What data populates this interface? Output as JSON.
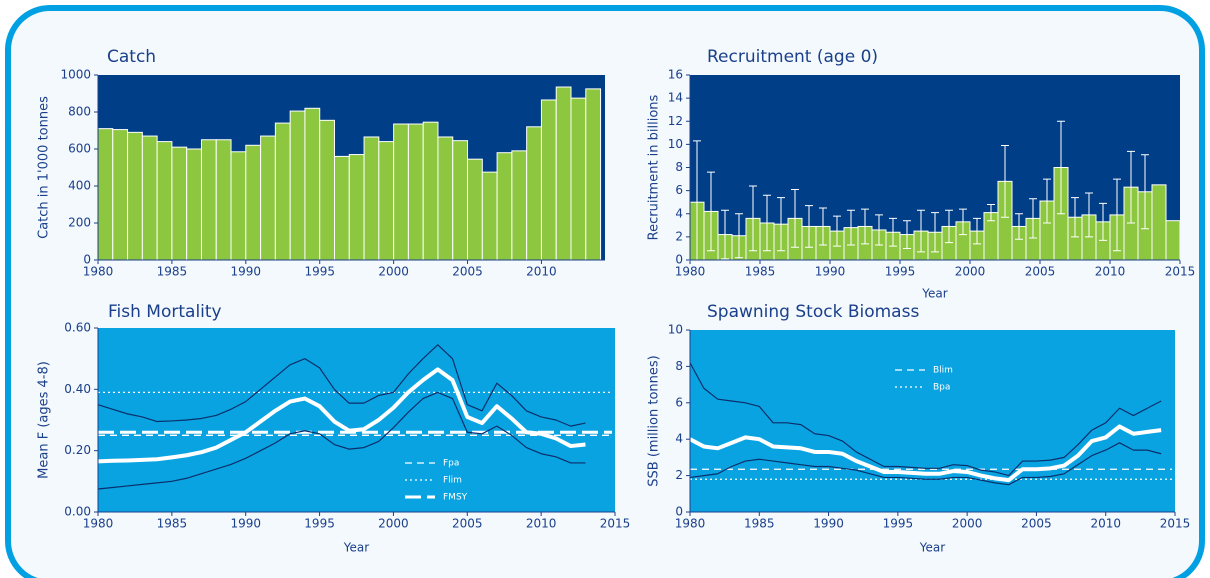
{
  "chart_data": [
    {
      "type": "bar",
      "title": "Catch",
      "ylabel": "Catch in 1'000 tonnes",
      "x": [
        1980,
        1981,
        1982,
        1983,
        1984,
        1985,
        1986,
        1987,
        1988,
        1989,
        1990,
        1991,
        1992,
        1993,
        1994,
        1995,
        1996,
        1997,
        1998,
        1999,
        2000,
        2001,
        2002,
        2003,
        2004,
        2005,
        2006,
        2007,
        2008,
        2009,
        2010,
        2011,
        2012,
        2013
      ],
      "values": [
        710,
        705,
        690,
        670,
        640,
        610,
        600,
        650,
        650,
        585,
        620,
        670,
        740,
        805,
        820,
        755,
        560,
        570,
        665,
        640,
        735,
        735,
        745,
        665,
        645,
        545,
        475,
        580,
        590,
        720,
        865,
        935,
        875,
        925
      ],
      "color": "#8dc63f",
      "xlim": [
        1980,
        2014.3
      ],
      "xticks": [
        1980,
        1985,
        1990,
        1995,
        2000,
        2005,
        2010
      ],
      "ylim": [
        0,
        1000
      ],
      "yticks": [
        0,
        200,
        400,
        600,
        800,
        1000
      ]
    },
    {
      "type": "bar",
      "title": "Recruitment (age 0)",
      "ylabel": "Recruitment in billions",
      "xlabel": "Year",
      "x": [
        1980,
        1981,
        1982,
        1983,
        1984,
        1985,
        1986,
        1987,
        1988,
        1989,
        1990,
        1991,
        1992,
        1993,
        1994,
        1995,
        1996,
        1997,
        1998,
        1999,
        2000,
        2001,
        2002,
        2003,
        2004,
        2005,
        2006,
        2007,
        2008,
        2009,
        2010,
        2011,
        2012,
        2013,
        2014
      ],
      "values": [
        5.0,
        4.2,
        2.2,
        2.1,
        3.6,
        3.2,
        3.1,
        3.6,
        2.9,
        2.9,
        2.5,
        2.8,
        2.9,
        2.6,
        2.4,
        2.2,
        2.5,
        2.4,
        2.9,
        3.3,
        2.5,
        4.1,
        6.8,
        2.9,
        3.6,
        5.1,
        8.0,
        3.7,
        3.9,
        3.3,
        3.9,
        6.3,
        5.9,
        6.5,
        3.4
      ],
      "errors": [
        5.3,
        3.4,
        2.1,
        1.9,
        2.8,
        2.4,
        2.3,
        2.5,
        1.8,
        1.6,
        1.3,
        1.5,
        1.5,
        1.3,
        1.2,
        1.2,
        1.8,
        1.7,
        1.4,
        1.1,
        1.1,
        0.7,
        3.1,
        1.1,
        1.7,
        1.9,
        4.0,
        1.7,
        1.9,
        1.6,
        3.1,
        3.1,
        3.2,
        null,
        null
      ],
      "color": "#8dc63f",
      "xlim": [
        1980,
        2015
      ],
      "xticks": [
        1980,
        1985,
        1990,
        1995,
        2000,
        2005,
        2010,
        2015
      ],
      "ylim": [
        0,
        16
      ],
      "yticks": [
        0,
        2,
        4,
        6,
        8,
        10,
        12,
        14,
        16
      ]
    },
    {
      "type": "line",
      "title": "Fish Mortality",
      "ylabel": "Mean F (ages 4-8)",
      "xlabel": "Year",
      "x": [
        1980,
        1981,
        1982,
        1983,
        1984,
        1985,
        1986,
        1987,
        1988,
        1989,
        1990,
        1991,
        1992,
        1993,
        1994,
        1995,
        1996,
        1997,
        1998,
        1999,
        2000,
        2001,
        2002,
        2003,
        2004,
        2005,
        2006,
        2007,
        2008,
        2009,
        2010,
        2011,
        2012,
        2013
      ],
      "series": [
        {
          "color": "#ffffff",
          "values": [
            0.165,
            0.167,
            0.168,
            0.17,
            0.172,
            0.178,
            0.185,
            0.195,
            0.21,
            0.235,
            0.26,
            0.295,
            0.33,
            0.36,
            0.37,
            0.345,
            0.295,
            0.265,
            0.27,
            0.3,
            0.34,
            0.39,
            0.43,
            0.465,
            0.43,
            0.31,
            0.29,
            0.345,
            0.305,
            0.26,
            0.255,
            0.24,
            0.215,
            0.22
          ]
        },
        {
          "color": "#0b2f6b",
          "values": [
            0.35,
            0.335,
            0.32,
            0.31,
            0.295,
            0.297,
            0.3,
            0.305,
            0.315,
            0.335,
            0.36,
            0.4,
            0.44,
            0.48,
            0.5,
            0.47,
            0.4,
            0.355,
            0.355,
            0.38,
            0.39,
            0.45,
            0.5,
            0.545,
            0.5,
            0.35,
            0.33,
            0.42,
            0.38,
            0.33,
            0.31,
            0.3,
            0.28,
            0.29
          ]
        },
        {
          "color": "#0b2f6b",
          "values": [
            0.075,
            0.08,
            0.085,
            0.09,
            0.095,
            0.1,
            0.11,
            0.125,
            0.14,
            0.155,
            0.175,
            0.2,
            0.225,
            0.255,
            0.265,
            0.255,
            0.22,
            0.205,
            0.21,
            0.23,
            0.275,
            0.325,
            0.37,
            0.39,
            0.37,
            0.26,
            0.255,
            0.28,
            0.25,
            0.21,
            0.19,
            0.18,
            0.16,
            0.16
          ]
        }
      ],
      "reference_lines": [
        {
          "name": "Fpa",
          "value": 0.25,
          "style": "dashed"
        },
        {
          "name": "Flim",
          "value": 0.39,
          "style": "dotted"
        },
        {
          "name": "FMSY",
          "value": 0.26,
          "style": "longdash"
        }
      ],
      "xlim": [
        1980,
        2015
      ],
      "xticks": [
        1980,
        1985,
        1990,
        1995,
        2000,
        2005,
        2010,
        2015
      ],
      "ylim": [
        0,
        0.6
      ],
      "yticks": [
        {
          "value": 0,
          "label": "0.00"
        },
        {
          "value": 0.2,
          "label": "0.20"
        },
        {
          "value": 0.4,
          "label": "0.40"
        },
        {
          "value": 0.6,
          "label": "0.60"
        }
      ]
    },
    {
      "type": "line",
      "title": "Spawning Stock Biomass",
      "ylabel": "SSB (million tonnes)",
      "xlabel": "Year",
      "x": [
        1980,
        1981,
        1982,
        1983,
        1984,
        1985,
        1986,
        1987,
        1988,
        1989,
        1990,
        1991,
        1992,
        1993,
        1994,
        1995,
        1996,
        1997,
        1998,
        1999,
        2000,
        2001,
        2002,
        2003,
        2004,
        2005,
        2006,
        2007,
        2008,
        2009,
        2010,
        2011,
        2012,
        2013,
        2014
      ],
      "series": [
        {
          "color": "#ffffff",
          "values": [
            4.0,
            3.6,
            3.5,
            3.8,
            4.1,
            4.0,
            3.6,
            3.55,
            3.5,
            3.3,
            3.3,
            3.2,
            2.8,
            2.5,
            2.2,
            2.2,
            2.15,
            2.1,
            2.1,
            2.25,
            2.2,
            2.0,
            1.85,
            1.75,
            2.35,
            2.35,
            2.4,
            2.55,
            3.1,
            3.9,
            4.1,
            4.7,
            4.3,
            4.4,
            4.5
          ]
        },
        {
          "color": "#0b2f6b",
          "values": [
            8.2,
            6.8,
            6.2,
            6.1,
            6.0,
            5.8,
            4.9,
            4.9,
            4.8,
            4.3,
            4.2,
            3.9,
            3.3,
            2.9,
            2.5,
            2.5,
            2.45,
            2.4,
            2.4,
            2.6,
            2.55,
            2.3,
            2.2,
            2.0,
            2.8,
            2.8,
            2.85,
            3.0,
            3.7,
            4.5,
            4.9,
            5.7,
            5.3,
            5.7,
            6.1
          ]
        },
        {
          "color": "#0b2f6b",
          "values": [
            1.9,
            2.0,
            2.1,
            2.5,
            2.8,
            2.9,
            2.8,
            2.7,
            2.6,
            2.5,
            2.5,
            2.4,
            2.3,
            2.1,
            1.9,
            1.9,
            1.85,
            1.8,
            1.8,
            1.9,
            1.9,
            1.75,
            1.6,
            1.5,
            1.9,
            1.9,
            1.95,
            2.1,
            2.6,
            3.1,
            3.4,
            3.8,
            3.4,
            3.4,
            3.2
          ]
        }
      ],
      "reference_lines": [
        {
          "name": "Blim",
          "value": 2.35,
          "style": "dashed"
        },
        {
          "name": "Bpa",
          "value": 1.8,
          "style": "dotted"
        }
      ],
      "xlim": [
        1980,
        2015
      ],
      "xticks": [
        1980,
        1985,
        1990,
        1995,
        2000,
        2005,
        2010,
        2015
      ],
      "ylim": [
        0,
        10
      ],
      "yticks": [
        0,
        2,
        4,
        6,
        8,
        10
      ]
    }
  ]
}
